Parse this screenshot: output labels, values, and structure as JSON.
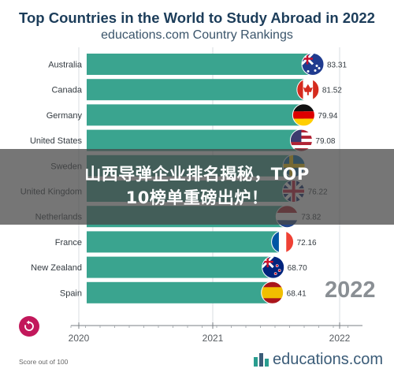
{
  "header": {
    "title": "Top Countries in the World to Study Abroad in 2022",
    "subtitle": "educations.com Country Rankings"
  },
  "colors": {
    "bar": "#3aa48f",
    "title": "#1c3d5a",
    "accent": "#c2185b"
  },
  "chart_data": {
    "type": "bar",
    "orientation": "horizontal",
    "categories": [
      "Australia",
      "Canada",
      "Germany",
      "United States",
      "Sweden",
      "United Kingdom",
      "Netherlands",
      "France",
      "New Zealand",
      "Spain"
    ],
    "values": [
      83.31,
      81.52,
      79.94,
      79.08,
      76.37,
      76.22,
      73.82,
      72.16,
      68.7,
      68.41
    ],
    "value_labels": [
      "83.31",
      "81.52",
      "79.94",
      "79.08",
      "",
      "76.22",
      "73.82",
      "72.16",
      "68.70",
      "68.41"
    ],
    "flag_icons": [
      "australia-flag-icon",
      "canada-flag-icon",
      "germany-flag-icon",
      "usa-flag-icon",
      "sweden-flag-icon",
      "uk-flag-icon",
      "netherlands-flag-icon",
      "france-flag-icon",
      "new-zealand-flag-icon",
      "spain-flag-icon"
    ],
    "x_ticks": [
      "2020",
      "2021",
      "2022"
    ],
    "xlim": [
      0,
      90
    ],
    "grid": true,
    "current_year": "2022"
  },
  "overlay": {
    "line1": "山西导弹企业排名揭秘，TOP",
    "line2": "10榜单重磅出炉！"
  },
  "footer": {
    "note": "Score out of 100",
    "brand": "educations.com",
    "replay_icon": "replay-icon"
  }
}
